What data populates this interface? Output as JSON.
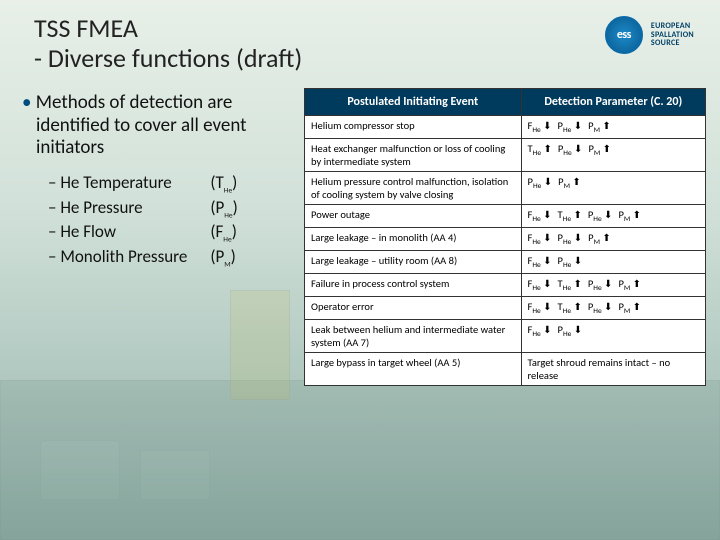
{
  "header": {
    "title_line1": "TSS FMEA",
    "title_line2": "- Diverse functions (draft)",
    "org_line1": "EUROPEAN",
    "org_line2": "SPALLATION",
    "org_line3": "SOURCE",
    "logo_abbr": "ess"
  },
  "left": {
    "main_bullet": "Methods of detection are identified to cover all event initiators",
    "subitems": [
      {
        "label": "He Temperature",
        "sym": "(T",
        "sub": "He",
        "close": ")"
      },
      {
        "label": "He Pressure",
        "sym": "(P",
        "sub": "He",
        "close": ")"
      },
      {
        "label": "He Flow",
        "sym": "(F",
        "sub": "He",
        "close": ")"
      },
      {
        "label": "Monolith Pressure",
        "sym": "(P",
        "sub": "M",
        "close": ")"
      }
    ]
  },
  "table": {
    "col1": "Postulated Initiating Event",
    "col2": "Detection Parameter (C. 20)",
    "rows": [
      {
        "event": "Helium compressor stop",
        "params": [
          {
            "v": "F",
            "s": "He",
            "d": "dn"
          },
          {
            "v": "P",
            "s": "He",
            "d": "dn"
          },
          {
            "v": "P",
            "s": "M",
            "d": "up"
          }
        ]
      },
      {
        "event": "Heat exchanger malfunction or loss of cooling by intermediate system",
        "params": [
          {
            "v": "T",
            "s": "He",
            "d": "up"
          },
          {
            "v": "P",
            "s": "He",
            "d": "dn"
          },
          {
            "v": "P",
            "s": "M",
            "d": "up"
          }
        ]
      },
      {
        "event": "Helium pressure control malfunction, isolation of cooling system by valve closing",
        "params": [
          {
            "v": "P",
            "s": "He",
            "d": "dn"
          },
          {
            "v": "P",
            "s": "M",
            "d": "up"
          }
        ]
      },
      {
        "event": "Power outage",
        "params": [
          {
            "v": "F",
            "s": "He",
            "d": "dn"
          },
          {
            "v": "T",
            "s": "He",
            "d": "up"
          },
          {
            "v": "P",
            "s": "He",
            "d": "dn"
          },
          {
            "v": "P",
            "s": "M",
            "d": "up"
          }
        ]
      },
      {
        "event": "Large leakage – in monolith (AA 4)",
        "params": [
          {
            "v": "F",
            "s": "He",
            "d": "dn"
          },
          {
            "v": "P",
            "s": "He",
            "d": "dn"
          },
          {
            "v": "P",
            "s": "M",
            "d": "up"
          }
        ]
      },
      {
        "event": "Large leakage – utility room (AA 8)",
        "params": [
          {
            "v": "F",
            "s": "He",
            "d": "dn"
          },
          {
            "v": "P",
            "s": "He",
            "d": "dn"
          }
        ]
      },
      {
        "event": "Failure in process control system",
        "params": [
          {
            "v": "F",
            "s": "He",
            "d": "dn"
          },
          {
            "v": "T",
            "s": "He",
            "d": "up"
          },
          {
            "v": "P",
            "s": "He",
            "d": "dn"
          },
          {
            "v": "P",
            "s": "M",
            "d": "up"
          }
        ]
      },
      {
        "event": "Operator error",
        "params": [
          {
            "v": "F",
            "s": "He",
            "d": "dn"
          },
          {
            "v": "T",
            "s": "He",
            "d": "up"
          },
          {
            "v": "P",
            "s": "He",
            "d": "dn"
          },
          {
            "v": "P",
            "s": "M",
            "d": "up"
          }
        ]
      },
      {
        "event": "Leak between helium and intermediate water system (AA 7)",
        "params": [
          {
            "v": "F",
            "s": "He",
            "d": "dn"
          },
          {
            "v": "P",
            "s": "He",
            "d": "dn"
          }
        ]
      },
      {
        "event": "Large bypass in target wheel (AA 5)",
        "text": "Target shroud remains intact – no release"
      }
    ]
  },
  "colors": {
    "header_bg": "#003a5d",
    "accent": "#004b7f"
  }
}
